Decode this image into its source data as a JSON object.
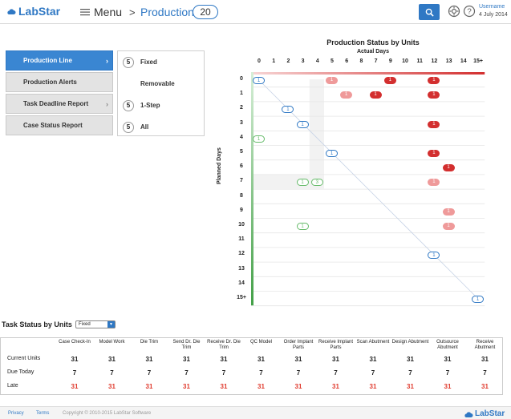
{
  "header": {
    "logo_text": "LabStar",
    "menu_label": "Menu",
    "breadcrumb_sep": ">",
    "breadcrumb": "Production",
    "count": "20",
    "username": "Username",
    "date": "4 July 2014"
  },
  "nav": {
    "items": [
      {
        "label": "Production Line",
        "active": true
      },
      {
        "label": "Production Alerts",
        "active": false
      },
      {
        "label": "Task Deadline Report",
        "active": false
      },
      {
        "label": "Case Status Report",
        "active": false
      }
    ]
  },
  "filters": [
    {
      "count": "5",
      "label": "Fixed"
    },
    {
      "count": "",
      "label": "Removable"
    },
    {
      "count": "5",
      "label": "1-Step"
    },
    {
      "count": "5",
      "label": "All"
    }
  ],
  "chart_data": {
    "type": "heatmap",
    "title": "Production Status by Units",
    "xlabel": "Actual Days",
    "ylabel": "Planned Days",
    "x": [
      "0",
      "1",
      "2",
      "3",
      "4",
      "5",
      "6",
      "8",
      "7",
      "9",
      "10",
      "11",
      "12",
      "13",
      "14",
      "15+"
    ],
    "y": [
      "0",
      "1",
      "2",
      "3",
      "4",
      "5",
      "6",
      "7",
      "8",
      "9",
      "10",
      "11",
      "12",
      "13",
      "14",
      "15+"
    ],
    "cells": [
      {
        "row": 0,
        "col": 0,
        "value": 1,
        "status": "on-time"
      },
      {
        "row": 0,
        "col": 5,
        "value": 1,
        "status": "warning"
      },
      {
        "row": 0,
        "col": 9,
        "value": 1,
        "status": "late"
      },
      {
        "row": 0,
        "col": 12,
        "value": 1,
        "status": "late"
      },
      {
        "row": 1,
        "col": 6,
        "value": 1,
        "status": "warning"
      },
      {
        "row": 1,
        "col": 8,
        "value": 1,
        "status": "late"
      },
      {
        "row": 1,
        "col": 12,
        "value": 1,
        "status": "late"
      },
      {
        "row": 2,
        "col": 2,
        "value": 1,
        "status": "on-time"
      },
      {
        "row": 3,
        "col": 3,
        "value": 1,
        "status": "on-time"
      },
      {
        "row": 3,
        "col": 12,
        "value": 1,
        "status": "late"
      },
      {
        "row": 4,
        "col": 0,
        "value": 1,
        "status": "early"
      },
      {
        "row": 5,
        "col": 5,
        "value": 1,
        "status": "on-time"
      },
      {
        "row": 5,
        "col": 12,
        "value": 1,
        "status": "late"
      },
      {
        "row": 6,
        "col": 13,
        "value": 1,
        "status": "late"
      },
      {
        "row": 7,
        "col": 3,
        "value": 1,
        "status": "early"
      },
      {
        "row": 7,
        "col": 4,
        "value": 3,
        "status": "early"
      },
      {
        "row": 7,
        "col": 12,
        "value": 1,
        "status": "warning"
      },
      {
        "row": 9,
        "col": 13,
        "value": 1,
        "status": "warning"
      },
      {
        "row": 10,
        "col": 3,
        "value": 1,
        "status": "early"
      },
      {
        "row": 10,
        "col": 13,
        "value": 1,
        "status": "warning"
      },
      {
        "row": 12,
        "col": 12,
        "value": 1,
        "status": "on-time"
      },
      {
        "row": 15,
        "col": 15,
        "value": 1,
        "status": "on-time"
      }
    ]
  },
  "colors": {
    "accent": "#2f78c4",
    "late": "#d32f2f",
    "warning": "#ef9a9a",
    "early": "#66bb6a",
    "on-time": "#2f78c4"
  },
  "tasks": {
    "title": "Task Status by Units",
    "select_value": "Fixed",
    "columns": [
      "Case Check-In",
      "Model Work",
      "Die Trim",
      "Send Dr. Die Trim",
      "Receive Dr. Die Trim",
      "QC Model",
      "Order Implant Parts",
      "Receive Implant Parts",
      "Scan Abutment",
      "Design Abutment",
      "Outsource Abutment",
      "Receive Abutment"
    ],
    "rows": [
      {
        "label": "Current Units",
        "values": [
          "31",
          "31",
          "31",
          "31",
          "31",
          "31",
          "31",
          "31",
          "31",
          "31",
          "31",
          "31"
        ],
        "late": false
      },
      {
        "label": "Due Today",
        "values": [
          "7",
          "7",
          "7",
          "7",
          "7",
          "7",
          "7",
          "7",
          "7",
          "7",
          "7",
          "7"
        ],
        "late": false
      },
      {
        "label": "Late",
        "values": [
          "31",
          "31",
          "31",
          "31",
          "31",
          "31",
          "31",
          "31",
          "31",
          "31",
          "31",
          "31"
        ],
        "late": true
      }
    ]
  },
  "footer": {
    "privacy": "Privacy",
    "terms": "Terms",
    "copyright": "Copyright © 2010-2015 LabStar Software",
    "logo_text": "LabStar"
  }
}
